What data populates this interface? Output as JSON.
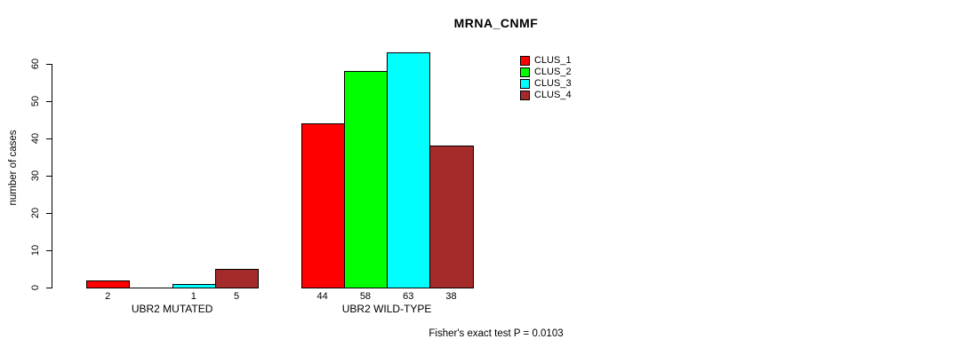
{
  "chart_data": {
    "type": "bar",
    "title": "MRNA_CNMF",
    "xlabel": "",
    "ylabel": "number of cases",
    "ylim": [
      0,
      63
    ],
    "yticks": [
      0,
      10,
      20,
      30,
      40,
      50,
      60
    ],
    "grid": false,
    "legend_position": "top-right",
    "categories": [
      "UBR2 MUTATED",
      "UBR2 WILD-TYPE"
    ],
    "series": [
      {
        "name": "CLUS_1",
        "color": "#ff0000",
        "values": [
          2,
          44
        ],
        "value_labels": [
          "2",
          "44"
        ]
      },
      {
        "name": "CLUS_2",
        "color": "#00ff00",
        "values": [
          0,
          58
        ],
        "value_labels": [
          "",
          "58"
        ]
      },
      {
        "name": "CLUS_3",
        "color": "#00ffff",
        "values": [
          1,
          63
        ],
        "value_labels": [
          "1",
          "63"
        ]
      },
      {
        "name": "CLUS_4",
        "color": "#a52a2a",
        "values": [
          5,
          38
        ],
        "value_labels": [
          "5",
          "38"
        ]
      }
    ],
    "bar_border_color": "#000000",
    "annotation": "Fisher's exact test P = 0.0103"
  }
}
